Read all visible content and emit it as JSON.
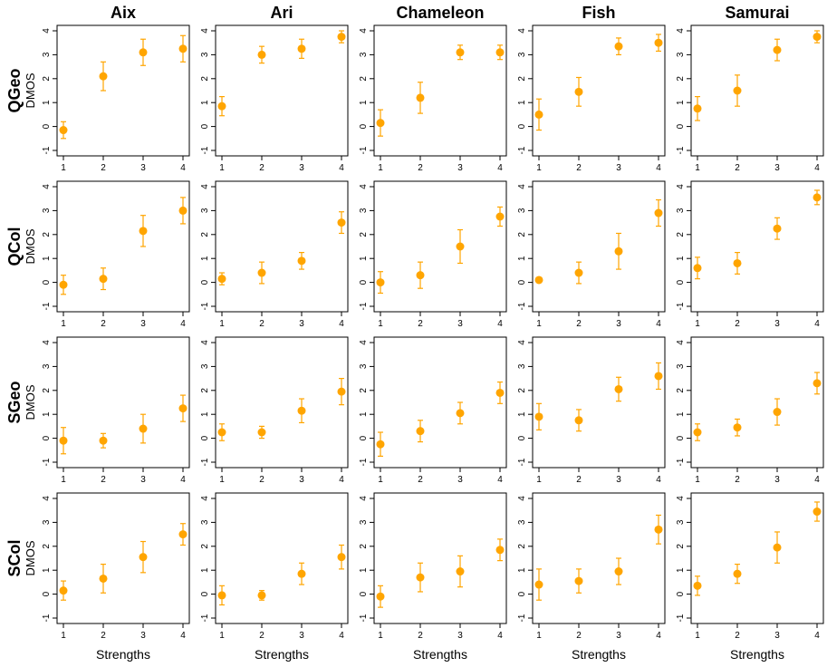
{
  "figure": {
    "column_titles": [
      "Aix",
      "Ari",
      "Chameleon",
      "Fish",
      "Samurai"
    ],
    "row_titles": [
      "QGeo",
      "QCol",
      "SGeo",
      "SCol"
    ],
    "ylabel": "DMOS",
    "xlabel": "Strengths",
    "point_color": "#FFA500"
  },
  "chart_data": {
    "type": "scatter",
    "layout": "grid 4 rows x 5 columns",
    "x": [
      1,
      2,
      3,
      4
    ],
    "x_ticks": [
      "1",
      "2",
      "3",
      "4"
    ],
    "y_ticks": [
      "-1",
      "0",
      "1",
      "2",
      "3",
      "4"
    ],
    "ylim": [
      -1,
      4
    ],
    "xlim": [
      1,
      4
    ],
    "grid": false,
    "error_bars": true,
    "panels": [
      {
        "row": "QGeo",
        "col": "Aix",
        "y": [
          -0.15,
          2.1,
          3.1,
          3.25
        ],
        "err": [
          0.35,
          0.6,
          0.55,
          0.55
        ]
      },
      {
        "row": "QGeo",
        "col": "Ari",
        "y": [
          0.85,
          3.0,
          3.25,
          3.75
        ],
        "err": [
          0.4,
          0.35,
          0.4,
          0.25
        ]
      },
      {
        "row": "QGeo",
        "col": "Chameleon",
        "y": [
          0.15,
          1.2,
          3.1,
          3.1
        ],
        "err": [
          0.55,
          0.65,
          0.3,
          0.3
        ]
      },
      {
        "row": "QGeo",
        "col": "Fish",
        "y": [
          0.5,
          1.45,
          3.35,
          3.5
        ],
        "err": [
          0.65,
          0.6,
          0.35,
          0.35
        ]
      },
      {
        "row": "QGeo",
        "col": "Samurai",
        "y": [
          0.75,
          1.5,
          3.2,
          3.75
        ],
        "err": [
          0.5,
          0.65,
          0.45,
          0.25
        ]
      },
      {
        "row": "QCol",
        "col": "Aix",
        "y": [
          -0.1,
          0.15,
          2.15,
          3.0
        ],
        "err": [
          0.4,
          0.45,
          0.65,
          0.55
        ]
      },
      {
        "row": "QCol",
        "col": "Ari",
        "y": [
          0.15,
          0.4,
          0.9,
          2.5
        ],
        "err": [
          0.25,
          0.45,
          0.35,
          0.45
        ]
      },
      {
        "row": "QCol",
        "col": "Chameleon",
        "y": [
          0.0,
          0.3,
          1.5,
          2.75
        ],
        "err": [
          0.45,
          0.55,
          0.7,
          0.4
        ]
      },
      {
        "row": "QCol",
        "col": "Fish",
        "y": [
          0.1,
          0.4,
          1.3,
          2.9
        ],
        "err": [
          0.1,
          0.45,
          0.75,
          0.55
        ]
      },
      {
        "row": "QCol",
        "col": "Samurai",
        "y": [
          0.6,
          0.8,
          2.25,
          3.55
        ],
        "err": [
          0.45,
          0.45,
          0.45,
          0.3
        ]
      },
      {
        "row": "SGeo",
        "col": "Aix",
        "y": [
          -0.1,
          -0.1,
          0.4,
          1.25
        ],
        "err": [
          0.55,
          0.3,
          0.6,
          0.55
        ]
      },
      {
        "row": "SGeo",
        "col": "Ari",
        "y": [
          0.25,
          0.25,
          1.15,
          1.95
        ],
        "err": [
          0.35,
          0.25,
          0.5,
          0.55
        ]
      },
      {
        "row": "SGeo",
        "col": "Chameleon",
        "y": [
          -0.25,
          0.3,
          1.05,
          1.9
        ],
        "err": [
          0.5,
          0.45,
          0.45,
          0.45
        ]
      },
      {
        "row": "SGeo",
        "col": "Fish",
        "y": [
          0.9,
          0.75,
          2.05,
          2.6
        ],
        "err": [
          0.55,
          0.45,
          0.5,
          0.55
        ]
      },
      {
        "row": "SGeo",
        "col": "Samurai",
        "y": [
          0.25,
          0.45,
          1.1,
          2.3
        ],
        "err": [
          0.35,
          0.35,
          0.55,
          0.45
        ]
      },
      {
        "row": "SCol",
        "col": "Aix",
        "y": [
          0.15,
          0.65,
          1.55,
          2.5
        ],
        "err": [
          0.4,
          0.6,
          0.65,
          0.45
        ]
      },
      {
        "row": "SCol",
        "col": "Ari",
        "y": [
          -0.05,
          -0.05,
          0.85,
          1.55
        ],
        "err": [
          0.4,
          0.2,
          0.45,
          0.5
        ]
      },
      {
        "row": "SCol",
        "col": "Chameleon",
        "y": [
          -0.1,
          0.7,
          0.95,
          1.85
        ],
        "err": [
          0.45,
          0.6,
          0.65,
          0.45
        ]
      },
      {
        "row": "SCol",
        "col": "Fish",
        "y": [
          0.4,
          0.55,
          0.95,
          2.7
        ],
        "err": [
          0.65,
          0.5,
          0.55,
          0.6
        ]
      },
      {
        "row": "SCol",
        "col": "Samurai",
        "y": [
          0.35,
          0.85,
          1.95,
          3.45
        ],
        "err": [
          0.4,
          0.4,
          0.65,
          0.4
        ]
      }
    ]
  }
}
